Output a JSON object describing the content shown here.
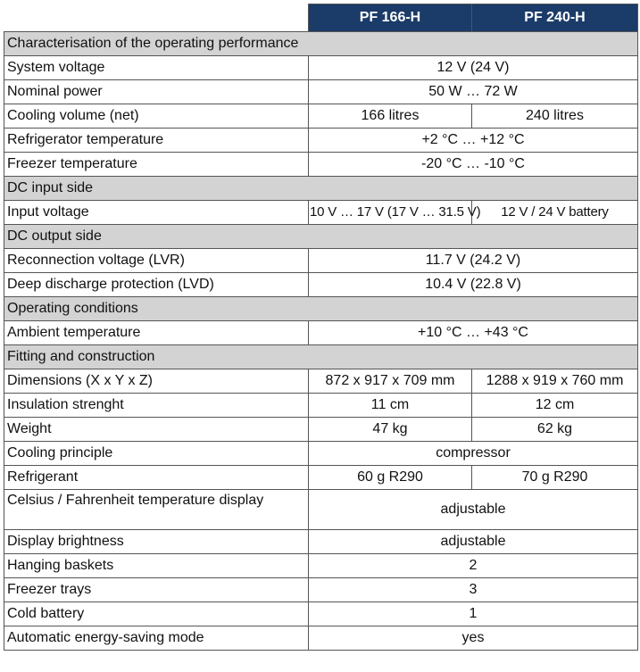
{
  "header": {
    "columns": [
      "PF 166-H",
      "PF 240-H"
    ]
  },
  "table": {
    "rows": [
      [
        "Characterisation of the operating performance"
      ],
      [
        "System voltage",
        "12 V (24 V)"
      ],
      [
        "Nominal power",
        "50 W … 72 W"
      ],
      [
        "Cooling volume (net)",
        "166 litres",
        "240 litres"
      ],
      [
        "Refrigerator temperature",
        "+2 °C … +12 °C"
      ],
      [
        "Freezer temperature",
        "-20 °C … -10 °C"
      ],
      [
        "DC input side"
      ],
      [
        "Input voltage",
        "10 V … 17 V (17 V … 31.5 V)",
        "12 V / 24 V battery"
      ],
      [
        "DC output side"
      ],
      [
        "Reconnection voltage (LVR)",
        "11.7 V (24.2 V)"
      ],
      [
        "Deep discharge protection (LVD)",
        "10.4 V (22.8 V)"
      ],
      [
        "Operating conditions"
      ],
      [
        "Ambient temperature",
        "+10 °C … +43 °C"
      ],
      [
        "Fitting and construction"
      ],
      [
        "Dimensions (X x Y x Z)",
        "872 x 917 x 709 mm",
        "1288 x 919 x 760 mm"
      ],
      [
        "Insulation strenght",
        "11 cm",
        "12 cm"
      ],
      [
        "Weight",
        "47 kg",
        "62 kg"
      ],
      [
        "Cooling principle",
        "compressor"
      ],
      [
        "Refrigerant",
        "60 g R290",
        "70 g R290"
      ],
      [
        "Celsius / Fahrenheit temperature display",
        "adjustable"
      ],
      [
        "Display brightness",
        "adjustable"
      ],
      [
        "Hanging baskets",
        "2"
      ],
      [
        "Freezer trays",
        "3"
      ],
      [
        "Cold battery",
        "1"
      ],
      [
        "Automatic energy-saving mode",
        "yes"
      ]
    ]
  }
}
